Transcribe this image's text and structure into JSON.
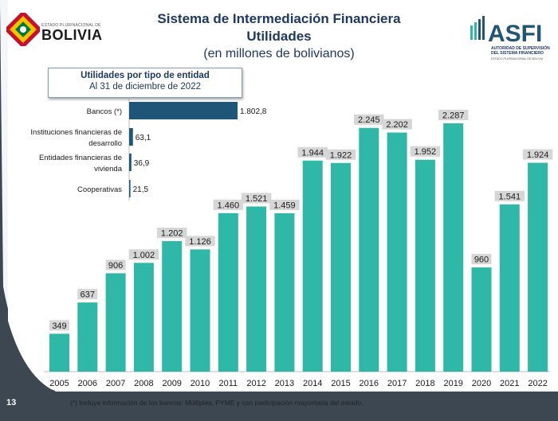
{
  "header": {
    "title": "Sistema de Intermediación Financiera",
    "subtitle": "Utilidades",
    "units": "(en millones de bolivianos)"
  },
  "logos": {
    "left_small_text": "ESTADO PLURINACIONAL DE",
    "left_big_text": "BOLIVIA",
    "right_main": "ASFI",
    "right_line1": "AUTORIDAD DE SUPERVISIÓN",
    "right_line2": "DEL SISTEMA FINANCIERO",
    "right_line3": "ESTADO PLURINACIONAL DE BOLIVIA"
  },
  "inset": {
    "title": "Utilidades por tipo de entidad",
    "date": "Al 31 de diciembre de 2022"
  },
  "footnote": "(*) Incluye información de los bancos: Múltiples, PYME y con participación mayoritaria del estado.",
  "page_number": "13",
  "colors": {
    "bar": "#2fb7a8",
    "inset_bar": "#1f5577",
    "title": "#1f3864",
    "label_box": "#d6d6d6",
    "background_dark": "#3c4752"
  },
  "chart_data": [
    {
      "type": "bar",
      "categories": [
        "2005",
        "2006",
        "2007",
        "2008",
        "2009",
        "2010",
        "2011",
        "2012",
        "2013",
        "2014",
        "2015",
        "2016",
        "2017",
        "2018",
        "2019",
        "2020",
        "2021",
        "2022"
      ],
      "values": [
        349,
        637,
        906,
        1002,
        1202,
        1126,
        1460,
        1521,
        1459,
        1944,
        1922,
        2245,
        2202,
        1952,
        2287,
        960,
        1541,
        1924
      ],
      "value_labels": [
        "349",
        "637",
        "906",
        "1.002",
        "1.202",
        "1.126",
        "1.460",
        "1.521",
        "1.459",
        "1.944",
        "1.922",
        "2.245",
        "2.202",
        "1.952",
        "2.287",
        "960",
        "1.541",
        "1.924"
      ],
      "ylim": [
        0,
        2287
      ]
    },
    {
      "type": "bar",
      "orientation": "horizontal",
      "categories": [
        "Bancos (*)",
        "Instituciones financieras de desarrollo",
        "Entidades financieras de vivienda",
        "Cooperativas"
      ],
      "category_lines": [
        [
          "Bancos (*)"
        ],
        [
          "Instituciones financieras de",
          "desarrollo"
        ],
        [
          "Entidades financieras de",
          "vivienda"
        ],
        [
          "Cooperativas"
        ]
      ],
      "values": [
        1802.8,
        63.1,
        36.9,
        21.5
      ],
      "value_labels": [
        "1.802,8",
        "63,1",
        "36,9",
        "21,5"
      ]
    }
  ]
}
